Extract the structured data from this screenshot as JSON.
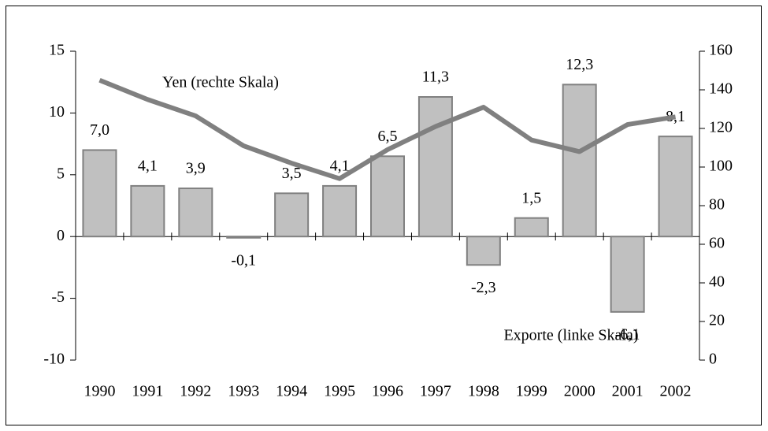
{
  "chart_data": {
    "type": "bar",
    "categories": [
      "1990",
      "1991",
      "1992",
      "1993",
      "1994",
      "1995",
      "1996",
      "1997",
      "1998",
      "1999",
      "2000",
      "2001",
      "2002"
    ],
    "series": [
      {
        "name": "Exporte (linke Skala)",
        "type": "bar",
        "color": "#c0c0c0",
        "values": [
          7.0,
          4.1,
          3.9,
          -0.1,
          3.5,
          4.1,
          6.5,
          11.3,
          -2.3,
          1.5,
          12.3,
          -6.1,
          8.1
        ],
        "value_labels": [
          "7,0",
          "4,1",
          "3,9",
          "-0,1",
          "3,5",
          "4,1",
          "6,5",
          "11,3",
          "-2,3",
          "1,5",
          "12,3",
          "-6,1",
          "8,1"
        ]
      },
      {
        "name": "Yen (rechte Skala)",
        "type": "line",
        "color": "#808080",
        "axis": "y2",
        "values": [
          145,
          135,
          126.5,
          111,
          102,
          94,
          109,
          121,
          131,
          114,
          108,
          122,
          126
        ]
      }
    ],
    "ylim": [
      -10,
      15
    ],
    "yticks": [
      -10,
      -5,
      0,
      5,
      10,
      15
    ],
    "y2lim": [
      0,
      160
    ],
    "y2ticks": [
      0,
      20,
      40,
      60,
      80,
      100,
      120,
      140,
      160
    ],
    "grid": false
  }
}
